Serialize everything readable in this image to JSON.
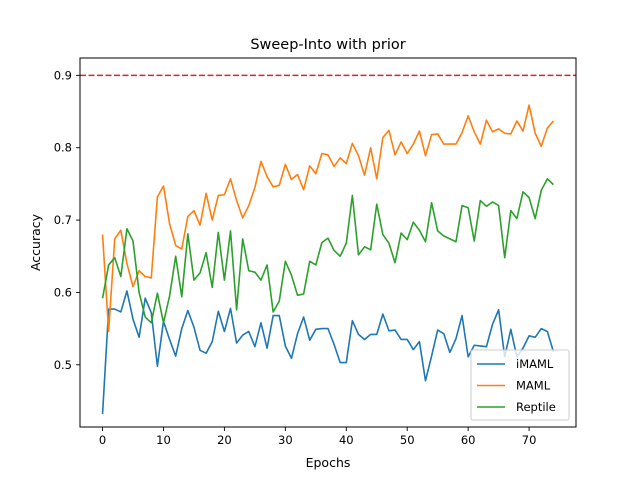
{
  "chart_data": {
    "type": "line",
    "title": "Sweep-Into with prior",
    "xlabel": "Epochs",
    "ylabel": "Accuracy",
    "xlim": [
      -3.7,
      77.7
    ],
    "ylim": [
      0.414,
      0.924
    ],
    "xticks": [
      0,
      10,
      20,
      30,
      40,
      50,
      60,
      70
    ],
    "yticks": [
      0.5,
      0.6,
      0.7,
      0.8,
      0.9
    ],
    "ytick_labels": [
      "0.5",
      "0.6",
      "0.7",
      "0.8",
      "0.9"
    ],
    "grid": false,
    "legend_position": "lower-right",
    "reference_line": {
      "y": 0.9,
      "color": "#d62728",
      "style": "dashed"
    },
    "x": [
      0,
      1,
      2,
      3,
      4,
      5,
      6,
      7,
      8,
      9,
      10,
      11,
      12,
      13,
      14,
      15,
      16,
      17,
      18,
      19,
      20,
      21,
      22,
      23,
      24,
      25,
      26,
      27,
      28,
      29,
      30,
      31,
      32,
      33,
      34,
      35,
      36,
      37,
      38,
      39,
      40,
      41,
      42,
      43,
      44,
      45,
      46,
      47,
      48,
      49,
      50,
      51,
      52,
      53,
      54,
      55,
      56,
      57,
      58,
      59,
      60,
      61,
      62,
      63,
      64,
      65,
      66,
      67,
      68,
      69,
      70,
      71,
      72,
      73,
      74
    ],
    "series": [
      {
        "name": "iMAML",
        "color": "#1f77b4",
        "values": [
          0.432,
          0.577,
          0.577,
          0.573,
          0.602,
          0.563,
          0.538,
          0.592,
          0.572,
          0.498,
          0.56,
          0.535,
          0.512,
          0.55,
          0.575,
          0.552,
          0.52,
          0.516,
          0.532,
          0.574,
          0.546,
          0.578,
          0.53,
          0.541,
          0.546,
          0.525,
          0.558,
          0.523,
          0.568,
          0.568,
          0.526,
          0.509,
          0.543,
          0.566,
          0.534,
          0.549,
          0.55,
          0.55,
          0.528,
          0.503,
          0.503,
          0.561,
          0.542,
          0.535,
          0.542,
          0.542,
          0.57,
          0.547,
          0.548,
          0.535,
          0.535,
          0.521,
          0.532,
          0.478,
          0.512,
          0.548,
          0.543,
          0.517,
          0.536,
          0.568,
          0.511,
          0.527,
          0.526,
          0.525,
          0.556,
          0.576,
          0.511,
          0.549,
          0.511,
          0.523,
          0.54,
          0.538,
          0.55,
          0.546,
          0.518
        ]
      },
      {
        "name": "MAML",
        "color": "#ff7f0e",
        "values": [
          0.68,
          0.546,
          0.674,
          0.686,
          0.64,
          0.608,
          0.63,
          0.622,
          0.62,
          0.732,
          0.747,
          0.695,
          0.665,
          0.66,
          0.705,
          0.713,
          0.693,
          0.737,
          0.7,
          0.734,
          0.735,
          0.757,
          0.727,
          0.703,
          0.72,
          0.745,
          0.781,
          0.76,
          0.746,
          0.748,
          0.777,
          0.756,
          0.763,
          0.742,
          0.775,
          0.764,
          0.792,
          0.79,
          0.774,
          0.786,
          0.778,
          0.806,
          0.789,
          0.762,
          0.8,
          0.757,
          0.814,
          0.824,
          0.79,
          0.808,
          0.792,
          0.805,
          0.823,
          0.789,
          0.818,
          0.819,
          0.805,
          0.805,
          0.805,
          0.821,
          0.844,
          0.822,
          0.805,
          0.838,
          0.822,
          0.826,
          0.82,
          0.819,
          0.837,
          0.823,
          0.859,
          0.82,
          0.802,
          0.827,
          0.837
        ]
      },
      {
        "name": "Reptile",
        "color": "#2ca02c",
        "values": [
          0.592,
          0.638,
          0.648,
          0.622,
          0.688,
          0.671,
          0.6,
          0.566,
          0.558,
          0.599,
          0.558,
          0.595,
          0.65,
          0.594,
          0.681,
          0.617,
          0.627,
          0.655,
          0.607,
          0.683,
          0.617,
          0.685,
          0.576,
          0.674,
          0.63,
          0.628,
          0.617,
          0.638,
          0.573,
          0.588,
          0.643,
          0.624,
          0.596,
          0.598,
          0.643,
          0.638,
          0.669,
          0.675,
          0.658,
          0.65,
          0.668,
          0.734,
          0.652,
          0.663,
          0.659,
          0.722,
          0.68,
          0.668,
          0.641,
          0.682,
          0.673,
          0.697,
          0.686,
          0.67,
          0.724,
          0.685,
          0.678,
          0.674,
          0.67,
          0.72,
          0.717,
          0.671,
          0.727,
          0.719,
          0.725,
          0.72,
          0.648,
          0.713,
          0.702,
          0.739,
          0.731,
          0.702,
          0.741,
          0.757,
          0.749
        ]
      }
    ]
  }
}
